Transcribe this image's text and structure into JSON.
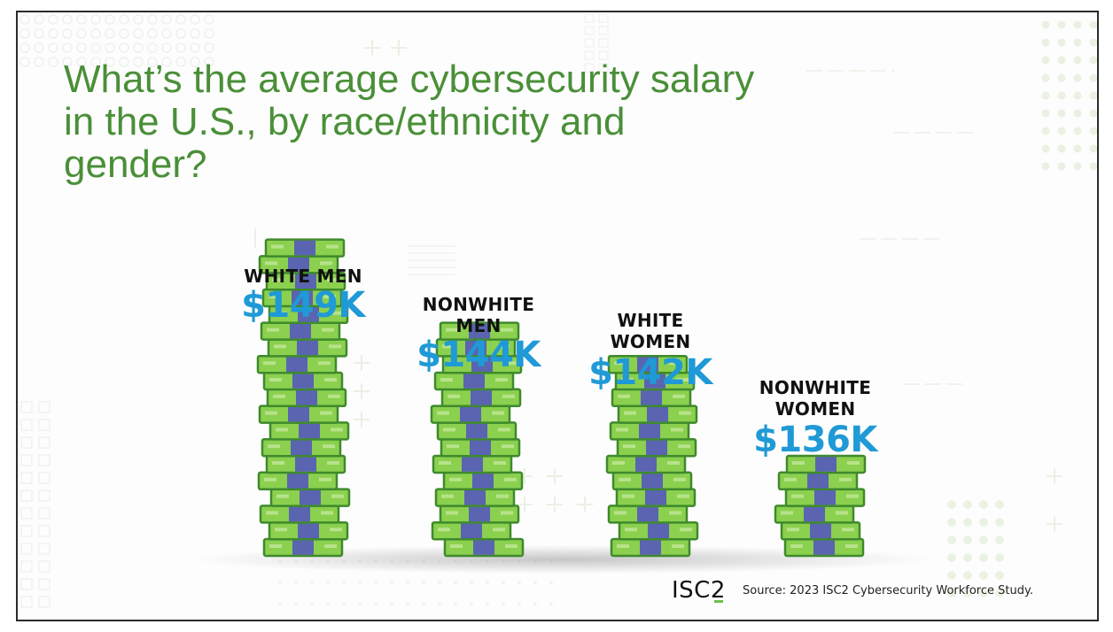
{
  "title": "What’s the average cybersecurity salary in the U.S., by race/ethnicity and gender?",
  "source": "Source: 2023 ISC2 Cybersecurity Workforce Study.",
  "logo_text": "ISC2",
  "colors": {
    "title": "#4a8f38",
    "value": "#1f9ad6",
    "bill_green": "#8bd04e",
    "bill_border": "#3e8a2c",
    "bill_band": "#5a64b0"
  },
  "chart_data": {
    "type": "bar",
    "categories": [
      "WHITE MEN",
      "NONWHITE MEN",
      "WHITE WOMEN",
      "NONWHITE WOMEN"
    ],
    "values": [
      149,
      144,
      142,
      136
    ],
    "value_labels": [
      "$149K",
      "$144K",
      "$142K",
      "$136K"
    ],
    "unit": "thousand USD",
    "title": "What’s the average cybersecurity salary in the U.S., by race/ethnicity and gender?",
    "xlabel": "",
    "ylabel": "",
    "grid": false,
    "legend": "none"
  },
  "labels": {
    "cat0": "WHITE MEN",
    "cat1_l1": "NONWHITE",
    "cat1_l2": "MEN",
    "cat2_l1": "WHITE",
    "cat2_l2": "WOMEN",
    "cat3_l1": "NONWHITE",
    "cat3_l2": "WOMEN"
  }
}
